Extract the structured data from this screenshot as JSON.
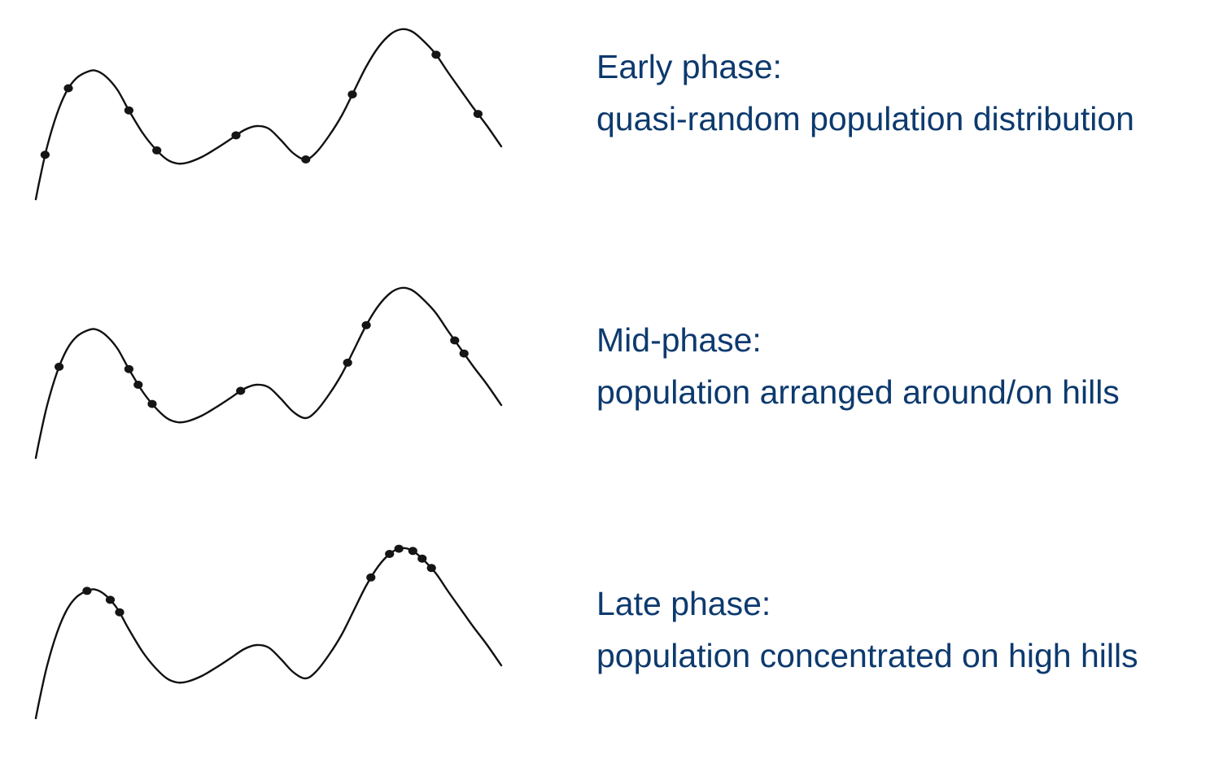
{
  "phases": [
    {
      "heading": "Early phase:",
      "description": "quasi-random population distribution",
      "individuals": [
        0.02,
        0.07,
        0.2,
        0.26,
        0.43,
        0.58,
        0.68,
        0.86,
        0.95
      ]
    },
    {
      "heading": "Mid-phase:",
      "description": "population arranged around/on hills",
      "individuals": [
        0.05,
        0.2,
        0.22,
        0.25,
        0.44,
        0.67,
        0.71,
        0.9,
        0.92
      ]
    },
    {
      "heading": "Late phase:",
      "description": "population concentrated on high hills",
      "individuals": [
        0.11,
        0.16,
        0.18,
        0.72,
        0.76,
        0.78,
        0.81,
        0.83,
        0.85
      ]
    }
  ],
  "colors": {
    "text": "#0d3a6e",
    "curve": "#111111",
    "individual": "#151515"
  }
}
